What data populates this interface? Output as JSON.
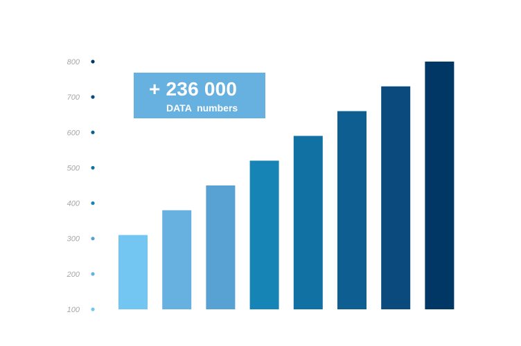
{
  "chart_data": {
    "type": "bar",
    "categories": [
      "",
      "",
      "",
      "",
      "",
      "",
      "",
      ""
    ],
    "values": [
      310,
      380,
      450,
      520,
      590,
      660,
      730,
      800
    ],
    "ylim": [
      100,
      800
    ],
    "yticks": [
      "100",
      "200",
      "300",
      "400",
      "500",
      "600",
      "700",
      "800"
    ],
    "title": "",
    "xlabel": "",
    "ylabel": "",
    "grid": false,
    "legend": "none",
    "bar_colors": [
      "#73c6f2",
      "#67b1e0",
      "#57a1d3",
      "#1685b6",
      "#1271a3",
      "#0e5e91",
      "#0a4a7c",
      "#003764"
    ],
    "tick_dot_colors": [
      "#73c6f2",
      "#67b1e0",
      "#57a1d3",
      "#1685b6",
      "#1271a3",
      "#0e5e91",
      "#0a4a7c",
      "#003764"
    ]
  },
  "callout": {
    "value": "+ 236 000",
    "caption": "DATA  numbers",
    "color": "#67b1e0"
  }
}
